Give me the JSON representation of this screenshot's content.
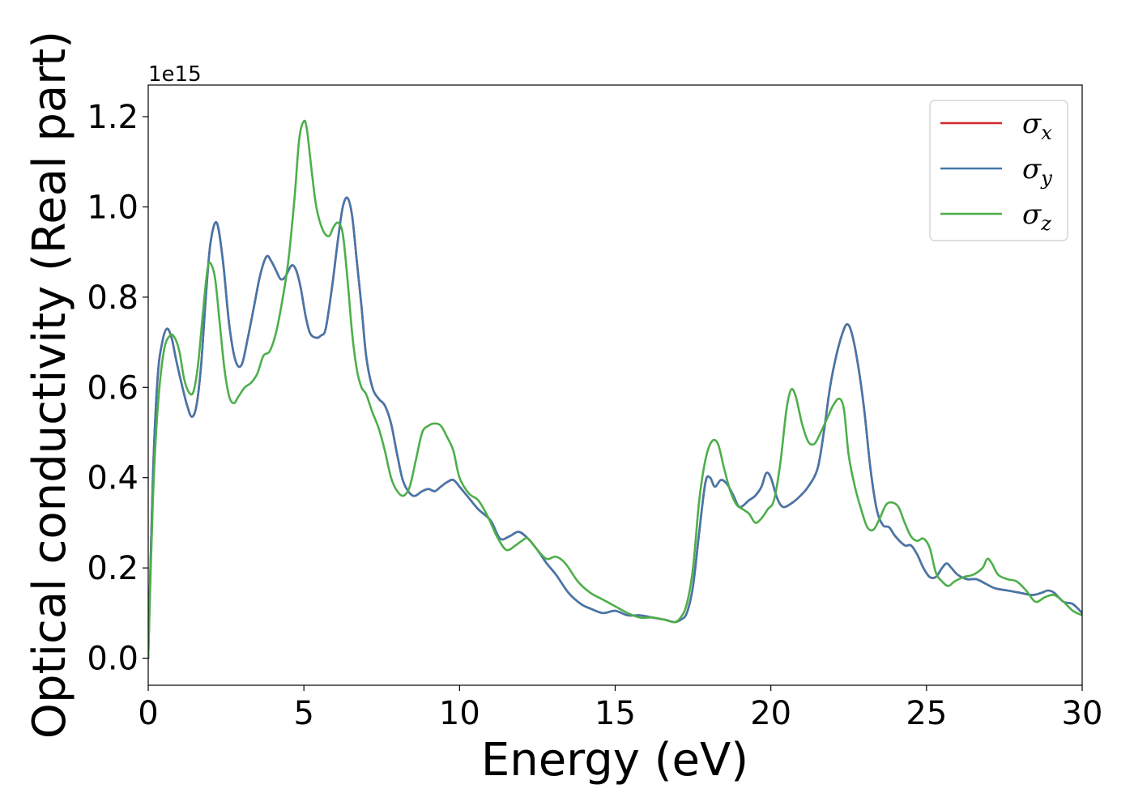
{
  "chart_data": {
    "type": "line",
    "title": "",
    "xlabel": "Energy (eV)",
    "ylabel": "Optical conductivity (Real part)",
    "offset_text": "1e15",
    "xlim": [
      0,
      30
    ],
    "ylim": [
      -0.06,
      1.27
    ],
    "x_ticks": [
      0,
      5,
      10,
      15,
      20,
      25,
      30
    ],
    "x_tick_labels": [
      "0",
      "5",
      "10",
      "15",
      "20",
      "25",
      "30"
    ],
    "y_ticks": [
      0.0,
      0.2,
      0.4,
      0.6,
      0.8,
      1.0,
      1.2
    ],
    "y_tick_labels": [
      "0.0",
      "0.2",
      "0.4",
      "0.6",
      "0.8",
      "1.0",
      "1.2"
    ],
    "grid": false,
    "legend_position": "top-right",
    "series": [
      {
        "name": "σx",
        "legend_base": "σ",
        "legend_sub": "x",
        "color": "#d62728",
        "x": [
          0,
          0.15,
          0.3,
          0.45,
          0.6,
          0.75,
          0.9,
          1.1,
          1.25,
          1.4,
          1.55,
          1.7,
          1.85,
          2.0,
          2.2,
          2.4,
          2.6,
          2.8,
          3.0,
          3.2,
          3.4,
          3.6,
          3.8,
          3.95,
          4.1,
          4.25,
          4.4,
          4.6,
          4.75,
          4.9,
          5.05,
          5.2,
          5.4,
          5.55,
          5.7,
          5.9,
          6.1,
          6.25,
          6.4,
          6.55,
          6.7,
          6.85,
          7.0,
          7.2,
          7.4,
          7.6,
          7.8,
          8.0,
          8.2,
          8.5,
          8.8,
          9.0,
          9.2,
          9.4,
          9.6,
          9.8,
          10.0,
          10.3,
          10.6,
          11.0,
          11.3,
          11.6,
          11.9,
          12.2,
          12.5,
          12.8,
          13.1,
          13.5,
          13.9,
          14.2,
          14.6,
          15.0,
          15.4,
          15.8,
          16.2,
          16.6,
          16.9,
          17.1,
          17.3,
          17.5,
          17.7,
          17.9,
          18.05,
          18.2,
          18.4,
          18.6,
          18.8,
          19.0,
          19.3,
          19.5,
          19.7,
          19.85,
          20.0,
          20.2,
          20.4,
          20.7,
          20.95,
          21.2,
          21.5,
          21.7,
          21.9,
          22.1,
          22.3,
          22.45,
          22.6,
          22.8,
          23.0,
          23.2,
          23.4,
          23.6,
          23.8,
          24.0,
          24.3,
          24.5,
          24.7,
          24.9,
          25.1,
          25.3,
          25.5,
          25.65,
          25.8,
          26.0,
          26.3,
          26.6,
          26.9,
          27.2,
          27.6,
          28.0,
          28.4,
          28.7,
          28.9,
          29.1,
          29.4,
          29.7,
          30.0
        ],
        "y": [
          0.0,
          0.4,
          0.62,
          0.7,
          0.73,
          0.71,
          0.66,
          0.6,
          0.56,
          0.535,
          0.56,
          0.65,
          0.8,
          0.92,
          0.965,
          0.88,
          0.74,
          0.66,
          0.65,
          0.71,
          0.78,
          0.85,
          0.89,
          0.88,
          0.86,
          0.84,
          0.845,
          0.87,
          0.86,
          0.82,
          0.76,
          0.72,
          0.71,
          0.715,
          0.73,
          0.82,
          0.93,
          1.0,
          1.02,
          0.98,
          0.88,
          0.78,
          0.67,
          0.6,
          0.575,
          0.56,
          0.52,
          0.45,
          0.39,
          0.36,
          0.37,
          0.375,
          0.37,
          0.38,
          0.39,
          0.395,
          0.38,
          0.355,
          0.33,
          0.305,
          0.265,
          0.27,
          0.28,
          0.265,
          0.24,
          0.21,
          0.185,
          0.145,
          0.12,
          0.11,
          0.1,
          0.105,
          0.095,
          0.095,
          0.09,
          0.085,
          0.08,
          0.085,
          0.1,
          0.16,
          0.28,
          0.39,
          0.4,
          0.38,
          0.395,
          0.385,
          0.36,
          0.335,
          0.35,
          0.36,
          0.38,
          0.41,
          0.4,
          0.355,
          0.335,
          0.345,
          0.36,
          0.38,
          0.42,
          0.5,
          0.6,
          0.67,
          0.72,
          0.74,
          0.72,
          0.65,
          0.55,
          0.42,
          0.33,
          0.295,
          0.29,
          0.27,
          0.25,
          0.25,
          0.23,
          0.2,
          0.18,
          0.18,
          0.2,
          0.21,
          0.2,
          0.185,
          0.175,
          0.175,
          0.165,
          0.155,
          0.15,
          0.145,
          0.14,
          0.145,
          0.15,
          0.145,
          0.125,
          0.12,
          0.1
        ]
      },
      {
        "name": "σy",
        "legend_base": "σ",
        "legend_sub": "y",
        "color": "#4477aa",
        "x": [
          0,
          0.15,
          0.3,
          0.45,
          0.6,
          0.75,
          0.9,
          1.1,
          1.25,
          1.4,
          1.55,
          1.7,
          1.85,
          2.0,
          2.2,
          2.4,
          2.6,
          2.8,
          3.0,
          3.2,
          3.4,
          3.6,
          3.8,
          3.95,
          4.1,
          4.25,
          4.4,
          4.6,
          4.75,
          4.9,
          5.05,
          5.2,
          5.4,
          5.55,
          5.7,
          5.9,
          6.1,
          6.25,
          6.4,
          6.55,
          6.7,
          6.85,
          7.0,
          7.2,
          7.4,
          7.6,
          7.8,
          8.0,
          8.2,
          8.5,
          8.8,
          9.0,
          9.2,
          9.4,
          9.6,
          9.8,
          10.0,
          10.3,
          10.6,
          11.0,
          11.3,
          11.6,
          11.9,
          12.2,
          12.5,
          12.8,
          13.1,
          13.5,
          13.9,
          14.2,
          14.6,
          15.0,
          15.4,
          15.8,
          16.2,
          16.6,
          16.9,
          17.1,
          17.3,
          17.5,
          17.7,
          17.9,
          18.05,
          18.2,
          18.4,
          18.6,
          18.8,
          19.0,
          19.3,
          19.5,
          19.7,
          19.85,
          20.0,
          20.2,
          20.4,
          20.7,
          20.95,
          21.2,
          21.5,
          21.7,
          21.9,
          22.1,
          22.3,
          22.45,
          22.6,
          22.8,
          23.0,
          23.2,
          23.4,
          23.6,
          23.8,
          24.0,
          24.3,
          24.5,
          24.7,
          24.9,
          25.1,
          25.3,
          25.5,
          25.65,
          25.8,
          26.0,
          26.3,
          26.6,
          26.9,
          27.2,
          27.6,
          28.0,
          28.4,
          28.7,
          28.9,
          29.1,
          29.4,
          29.7,
          30.0
        ],
        "y": [
          0.0,
          0.4,
          0.62,
          0.7,
          0.73,
          0.71,
          0.66,
          0.6,
          0.56,
          0.535,
          0.56,
          0.65,
          0.8,
          0.92,
          0.965,
          0.88,
          0.74,
          0.66,
          0.65,
          0.71,
          0.78,
          0.85,
          0.89,
          0.88,
          0.86,
          0.84,
          0.845,
          0.87,
          0.86,
          0.82,
          0.76,
          0.72,
          0.71,
          0.715,
          0.73,
          0.82,
          0.93,
          1.0,
          1.02,
          0.98,
          0.88,
          0.78,
          0.67,
          0.6,
          0.575,
          0.56,
          0.52,
          0.45,
          0.39,
          0.36,
          0.37,
          0.375,
          0.37,
          0.38,
          0.39,
          0.395,
          0.38,
          0.355,
          0.33,
          0.305,
          0.265,
          0.27,
          0.28,
          0.265,
          0.24,
          0.21,
          0.185,
          0.145,
          0.12,
          0.11,
          0.1,
          0.105,
          0.095,
          0.095,
          0.09,
          0.085,
          0.08,
          0.085,
          0.1,
          0.16,
          0.28,
          0.39,
          0.4,
          0.38,
          0.395,
          0.385,
          0.36,
          0.335,
          0.35,
          0.36,
          0.38,
          0.41,
          0.4,
          0.355,
          0.335,
          0.345,
          0.36,
          0.38,
          0.42,
          0.5,
          0.6,
          0.67,
          0.72,
          0.74,
          0.72,
          0.65,
          0.55,
          0.42,
          0.33,
          0.295,
          0.29,
          0.27,
          0.25,
          0.25,
          0.23,
          0.2,
          0.18,
          0.18,
          0.2,
          0.21,
          0.2,
          0.185,
          0.175,
          0.175,
          0.165,
          0.155,
          0.15,
          0.145,
          0.14,
          0.145,
          0.15,
          0.145,
          0.125,
          0.12,
          0.1
        ]
      },
      {
        "name": "σz",
        "legend_base": "σ",
        "legend_sub": "z",
        "color": "#4daf4a",
        "x": [
          0,
          0.15,
          0.3,
          0.5,
          0.7,
          0.85,
          1.0,
          1.15,
          1.3,
          1.45,
          1.6,
          1.75,
          1.9,
          2.0,
          2.15,
          2.3,
          2.45,
          2.6,
          2.75,
          2.9,
          3.1,
          3.3,
          3.5,
          3.7,
          3.9,
          4.1,
          4.3,
          4.5,
          4.7,
          4.85,
          5.0,
          5.1,
          5.25,
          5.4,
          5.6,
          5.8,
          5.95,
          6.1,
          6.25,
          6.4,
          6.55,
          6.7,
          6.85,
          7.0,
          7.2,
          7.4,
          7.6,
          7.8,
          8.0,
          8.2,
          8.4,
          8.6,
          8.8,
          9.0,
          9.2,
          9.4,
          9.6,
          9.8,
          10.0,
          10.3,
          10.6,
          10.9,
          11.2,
          11.5,
          11.8,
          12.0,
          12.2,
          12.5,
          12.8,
          13.1,
          13.4,
          13.8,
          14.2,
          14.6,
          15.0,
          15.4,
          15.8,
          16.2,
          16.6,
          16.9,
          17.1,
          17.3,
          17.5,
          17.7,
          17.9,
          18.1,
          18.3,
          18.5,
          18.7,
          18.9,
          19.1,
          19.3,
          19.5,
          19.7,
          19.9,
          20.1,
          20.3,
          20.5,
          20.65,
          20.8,
          21.0,
          21.2,
          21.4,
          21.6,
          21.8,
          22.0,
          22.2,
          22.35,
          22.5,
          22.7,
          22.9,
          23.1,
          23.3,
          23.5,
          23.7,
          23.9,
          24.1,
          24.3,
          24.5,
          24.7,
          24.9,
          25.1,
          25.3,
          25.5,
          25.7,
          25.9,
          26.2,
          26.5,
          26.8,
          26.95,
          27.1,
          27.3,
          27.6,
          27.9,
          28.2,
          28.5,
          28.8,
          29.1,
          29.4,
          29.7,
          30.0
        ],
        "y": [
          0.0,
          0.35,
          0.55,
          0.68,
          0.715,
          0.71,
          0.68,
          0.62,
          0.59,
          0.59,
          0.65,
          0.76,
          0.86,
          0.875,
          0.84,
          0.74,
          0.64,
          0.58,
          0.565,
          0.58,
          0.6,
          0.61,
          0.63,
          0.67,
          0.68,
          0.72,
          0.79,
          0.88,
          1.02,
          1.15,
          1.19,
          1.17,
          1.08,
          1.0,
          0.95,
          0.935,
          0.955,
          0.965,
          0.94,
          0.84,
          0.72,
          0.64,
          0.6,
          0.585,
          0.545,
          0.51,
          0.46,
          0.4,
          0.37,
          0.36,
          0.38,
          0.44,
          0.5,
          0.515,
          0.52,
          0.515,
          0.49,
          0.46,
          0.4,
          0.365,
          0.35,
          0.315,
          0.27,
          0.24,
          0.25,
          0.26,
          0.265,
          0.24,
          0.22,
          0.225,
          0.21,
          0.17,
          0.145,
          0.13,
          0.115,
          0.1,
          0.09,
          0.09,
          0.085,
          0.08,
          0.09,
          0.12,
          0.2,
          0.35,
          0.44,
          0.48,
          0.475,
          0.42,
          0.37,
          0.34,
          0.33,
          0.32,
          0.3,
          0.31,
          0.33,
          0.35,
          0.43,
          0.55,
          0.595,
          0.58,
          0.52,
          0.48,
          0.475,
          0.5,
          0.53,
          0.56,
          0.575,
          0.55,
          0.45,
          0.38,
          0.33,
          0.29,
          0.285,
          0.31,
          0.34,
          0.345,
          0.335,
          0.3,
          0.27,
          0.26,
          0.265,
          0.245,
          0.19,
          0.17,
          0.16,
          0.17,
          0.18,
          0.185,
          0.2,
          0.22,
          0.21,
          0.185,
          0.175,
          0.17,
          0.15,
          0.125,
          0.135,
          0.14,
          0.125,
          0.105,
          0.095
        ]
      }
    ]
  }
}
